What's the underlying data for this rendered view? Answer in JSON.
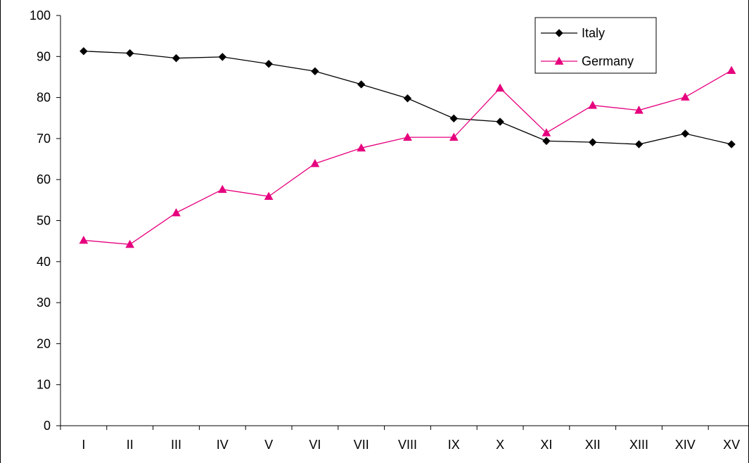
{
  "chart_data": {
    "type": "line",
    "categories": [
      "I",
      "II",
      "III",
      "IV",
      "V",
      "VI",
      "VII",
      "VIII",
      "IX",
      "X",
      "XI",
      "XII",
      "XIII",
      "XIV",
      "XV"
    ],
    "series": [
      {
        "name": "Italy",
        "color": "#000000",
        "marker": "diamond",
        "values": [
          91.3,
          90.8,
          89.6,
          89.9,
          88.2,
          86.4,
          83.2,
          79.8,
          74.9,
          74.1,
          69.4,
          69.1,
          68.6,
          71.2,
          68.6
        ]
      },
      {
        "name": "Germany",
        "color": "#e6007e",
        "marker": "triangle",
        "values": [
          45.2,
          44.2,
          51.9,
          57.6,
          55.9,
          63.9,
          67.7,
          70.3,
          70.3,
          82.3,
          71.4,
          78.1,
          76.9,
          80.1,
          86.6
        ]
      }
    ],
    "ylim": [
      0,
      100
    ],
    "yticks": [
      0,
      10,
      20,
      30,
      40,
      50,
      60,
      70,
      80,
      90,
      100
    ],
    "title": "",
    "xlabel": "",
    "ylabel": "",
    "grid": false,
    "legend_position": "top-right"
  }
}
